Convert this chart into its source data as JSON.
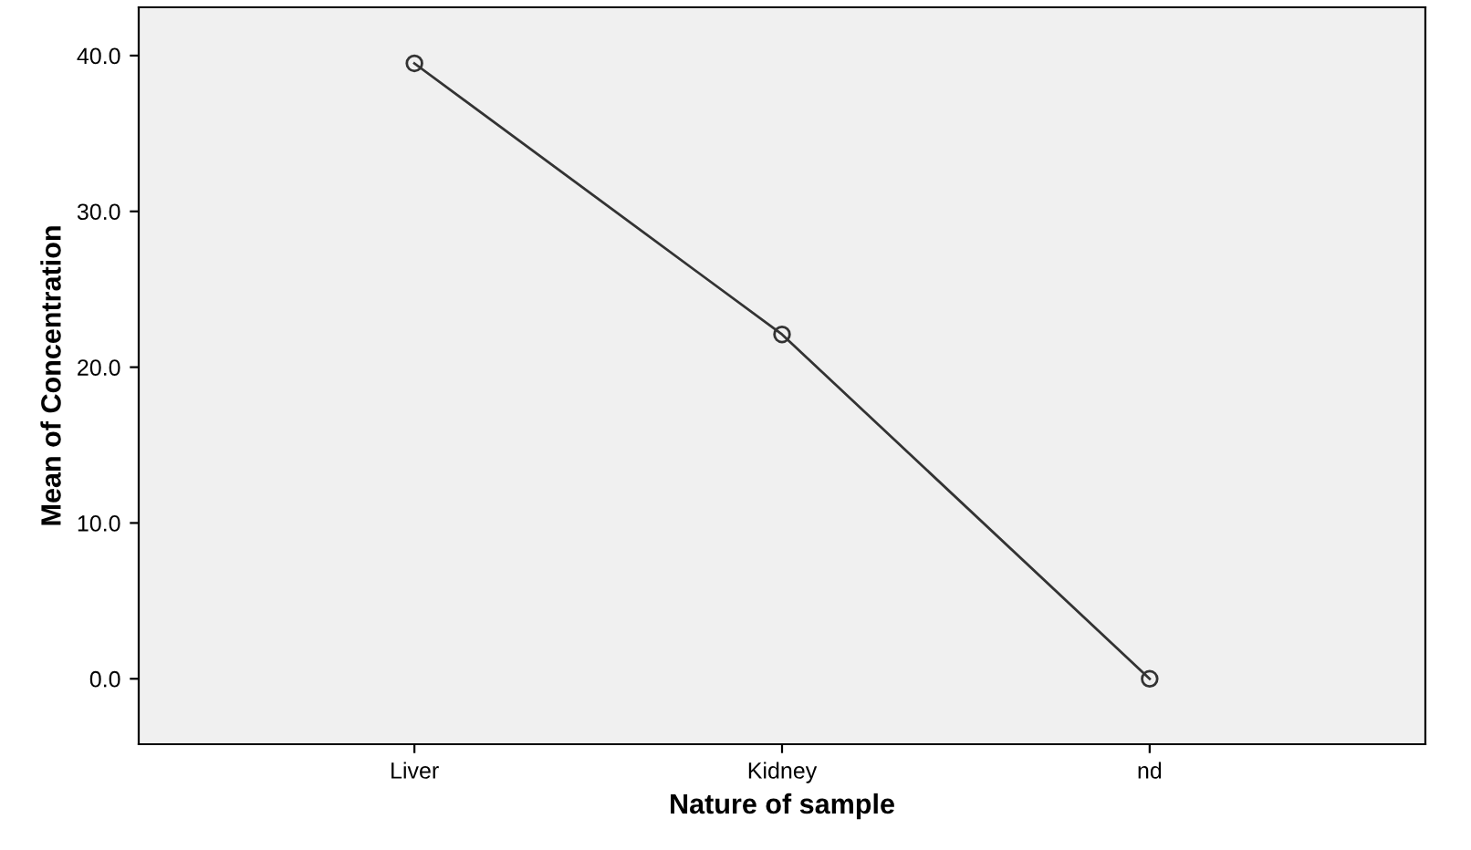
{
  "chart_data": {
    "type": "line",
    "xlabel": "Nature of sample",
    "ylabel": "Mean of Concentration",
    "categories": [
      "Liver",
      "Kidney",
      "nd"
    ],
    "series": [
      {
        "color": "#333333",
        "values": [
          39.5,
          22.1,
          0.0
        ]
      }
    ],
    "ylim": [
      -4.2,
      43.1
    ],
    "yticks": [
      {
        "value": 0,
        "label": "0.0"
      },
      {
        "value": 10,
        "label": "10.0"
      },
      {
        "value": 20,
        "label": "20.0"
      },
      {
        "value": 30,
        "label": "30.0"
      },
      {
        "value": 40,
        "label": "40.0"
      }
    ],
    "marker": "circle",
    "line_style": "solid",
    "grid": false,
    "legend": false
  }
}
